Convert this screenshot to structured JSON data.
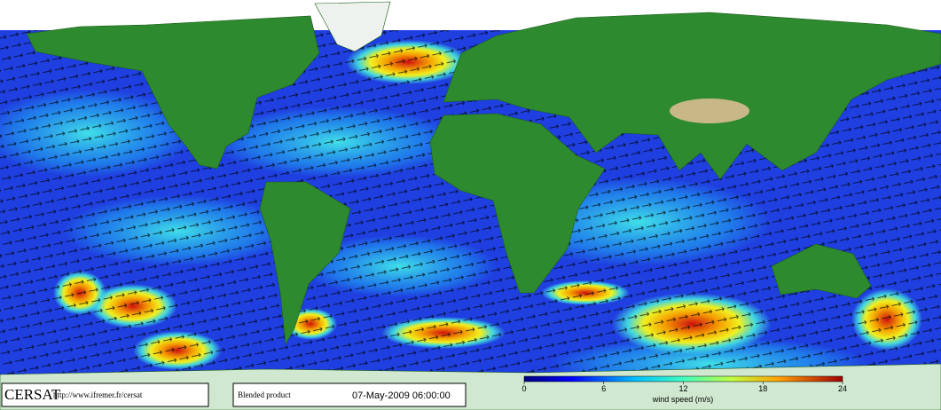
{
  "logo": "CERSAT",
  "url": "http://www.ifremer.fr/cersat",
  "product": "Blended product",
  "timestamp": "07-May-2009 06:00:00",
  "colorbar": {
    "label": "wind speed (m/s)",
    "lim": [
      0,
      24
    ],
    "ticks": [
      0,
      6,
      12,
      18,
      24
    ]
  }
}
